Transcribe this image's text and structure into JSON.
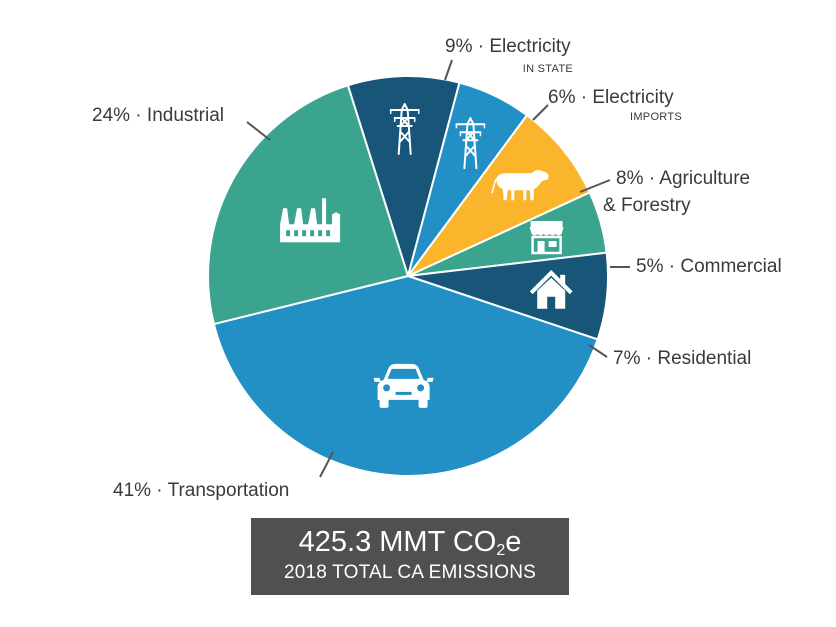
{
  "chart_data": {
    "type": "pie",
    "start_angle_deg": -17.5,
    "direction": "clockwise",
    "slices": [
      {
        "key": "electricity-in-state",
        "percent": 9,
        "label": "9% · Electricity",
        "sublabel": "IN STATE",
        "color": "#175579",
        "icon": "power-tower-icon"
      },
      {
        "key": "electricity-imports",
        "percent": 6,
        "label": "6% · Electricity",
        "sublabel": "IMPORTS",
        "color": "#2290c4",
        "icon": "power-tower-icon"
      },
      {
        "key": "agriculture-forestry",
        "percent": 8,
        "label_lines": [
          "8% · Agriculture",
          "& Forestry"
        ],
        "color": "#fbb52d",
        "icon": "cow-icon"
      },
      {
        "key": "commercial",
        "percent": 5,
        "label": "5% · Commercial",
        "color": "#3aa48f",
        "icon": "storefront-icon"
      },
      {
        "key": "residential",
        "percent": 7,
        "label": "7% · Residential",
        "color": "#175579",
        "icon": "house-icon"
      },
      {
        "key": "transportation",
        "percent": 41,
        "label": "41% · Transportation",
        "color": "#2290c4",
        "icon": "car-icon"
      },
      {
        "key": "industrial",
        "percent": 24,
        "label": "24% · Industrial",
        "color": "#3aa48f",
        "icon": "factory-icon"
      }
    ]
  },
  "total": {
    "value": "425.3 MMT CO",
    "subscript": "2",
    "suffix": "e",
    "caption": "2018 TOTAL CA EMISSIONS"
  }
}
